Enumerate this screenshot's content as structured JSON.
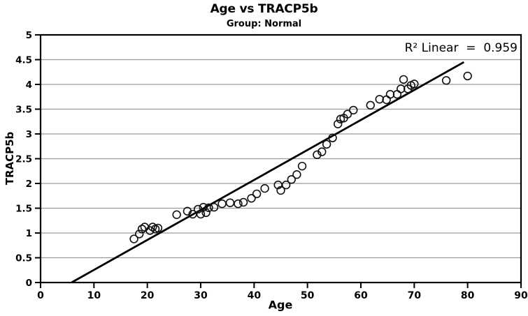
{
  "chart_data": {
    "type": "scatter",
    "title": "Age vs TRACP5b",
    "subtitle": "Group: Normal",
    "xlabel": "Age",
    "ylabel": "TRACP5b",
    "annotation": "R² Linear  =  0.959",
    "xlim": [
      0,
      90
    ],
    "ylim": [
      0,
      5
    ],
    "x_ticks": [
      0,
      10,
      20,
      30,
      40,
      50,
      60,
      70,
      80,
      90
    ],
    "x_tick_labels": [
      "0",
      "10",
      "20",
      "30",
      "40",
      "50",
      "60",
      "70",
      "80",
      "90"
    ],
    "y_ticks": [
      0,
      0.5,
      1,
      1.5,
      2,
      2.5,
      3,
      3.5,
      4,
      4.5,
      5
    ],
    "y_tick_labels": [
      "0",
      "0.5",
      "1",
      "1.5",
      "2",
      "2.5",
      "3",
      "3.5",
      "4",
      "4.5",
      "5"
    ],
    "grid": "horizontal, every 0.5, light gray",
    "legend": "none",
    "marker": "hollow-circle",
    "colors": {
      "marker_stroke": "#111111",
      "line": "#000000",
      "gridline": "#9b9b9b",
      "frame": "#000000",
      "background": "#ffffff"
    },
    "points": [
      [
        17.5,
        0.88
      ],
      [
        18.5,
        0.98
      ],
      [
        19,
        1.08
      ],
      [
        19.5,
        1.12
      ],
      [
        20.5,
        1.05
      ],
      [
        21,
        1.12
      ],
      [
        21.5,
        1.08
      ],
      [
        22,
        1.1
      ],
      [
        25.5,
        1.37
      ],
      [
        27.5,
        1.44
      ],
      [
        28.5,
        1.38
      ],
      [
        29.5,
        1.48
      ],
      [
        30,
        1.38
      ],
      [
        30.5,
        1.52
      ],
      [
        31,
        1.41
      ],
      [
        31.5,
        1.51
      ],
      [
        32.5,
        1.52
      ],
      [
        34,
        1.59
      ],
      [
        35.5,
        1.61
      ],
      [
        37,
        1.59
      ],
      [
        38,
        1.62
      ],
      [
        39.5,
        1.7
      ],
      [
        40.5,
        1.79
      ],
      [
        42,
        1.9
      ],
      [
        44.5,
        1.97
      ],
      [
        45,
        1.86
      ],
      [
        46,
        1.97
      ],
      [
        47,
        2.08
      ],
      [
        48,
        2.18
      ],
      [
        49,
        2.35
      ],
      [
        51.8,
        2.58
      ],
      [
        52.7,
        2.64
      ],
      [
        53.6,
        2.79
      ],
      [
        54.7,
        2.92
      ],
      [
        55.7,
        3.2
      ],
      [
        56.2,
        3.3
      ],
      [
        56.8,
        3.32
      ],
      [
        57.5,
        3.4
      ],
      [
        58.6,
        3.48
      ],
      [
        61.8,
        3.58
      ],
      [
        63.5,
        3.7
      ],
      [
        64.8,
        3.69
      ],
      [
        65.5,
        3.8
      ],
      [
        66.8,
        3.8
      ],
      [
        67.5,
        3.91
      ],
      [
        68,
        4.1
      ],
      [
        68.8,
        3.91
      ],
      [
        69.4,
        3.98
      ],
      [
        70,
        4.01
      ],
      [
        76,
        4.08
      ],
      [
        80,
        4.17
      ]
    ],
    "regression_line": {
      "x1": 5.8,
      "y1": 0,
      "x2": 79.3,
      "y2": 4.45
    }
  }
}
